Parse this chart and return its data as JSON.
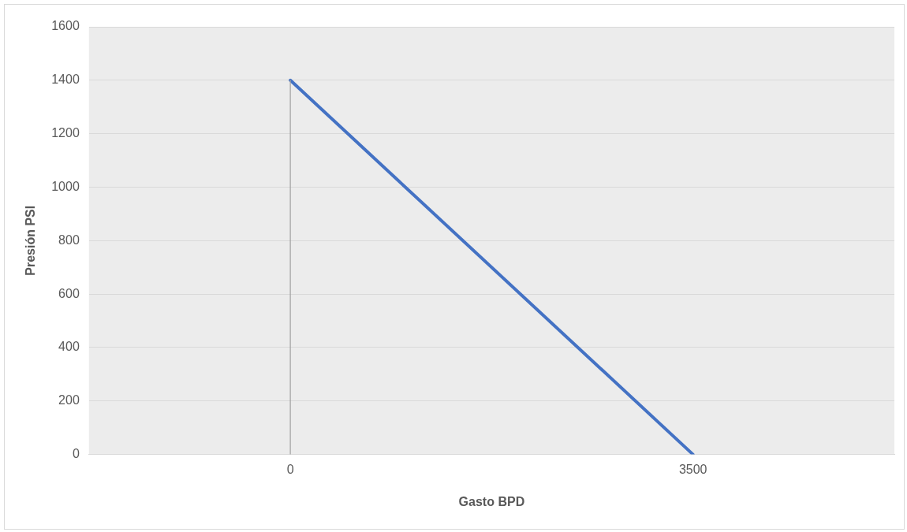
{
  "chart_data": {
    "type": "line",
    "xlabel": "Gasto BPD",
    "ylabel": "Presión PSI",
    "categories": [
      "0",
      "3500"
    ],
    "ylim": [
      0,
      1600
    ],
    "yticks": [
      0,
      200,
      400,
      600,
      800,
      1000,
      1200,
      1400,
      1600
    ],
    "grid": "y",
    "marker": "none",
    "line_style": "solid",
    "series": [
      {
        "color": "#4472c4",
        "values": [
          1400,
          0
        ]
      },
      {
        "color": "#a0a0a0",
        "x": [
          "0",
          "0"
        ],
        "values": [
          0,
          1400
        ]
      }
    ]
  }
}
